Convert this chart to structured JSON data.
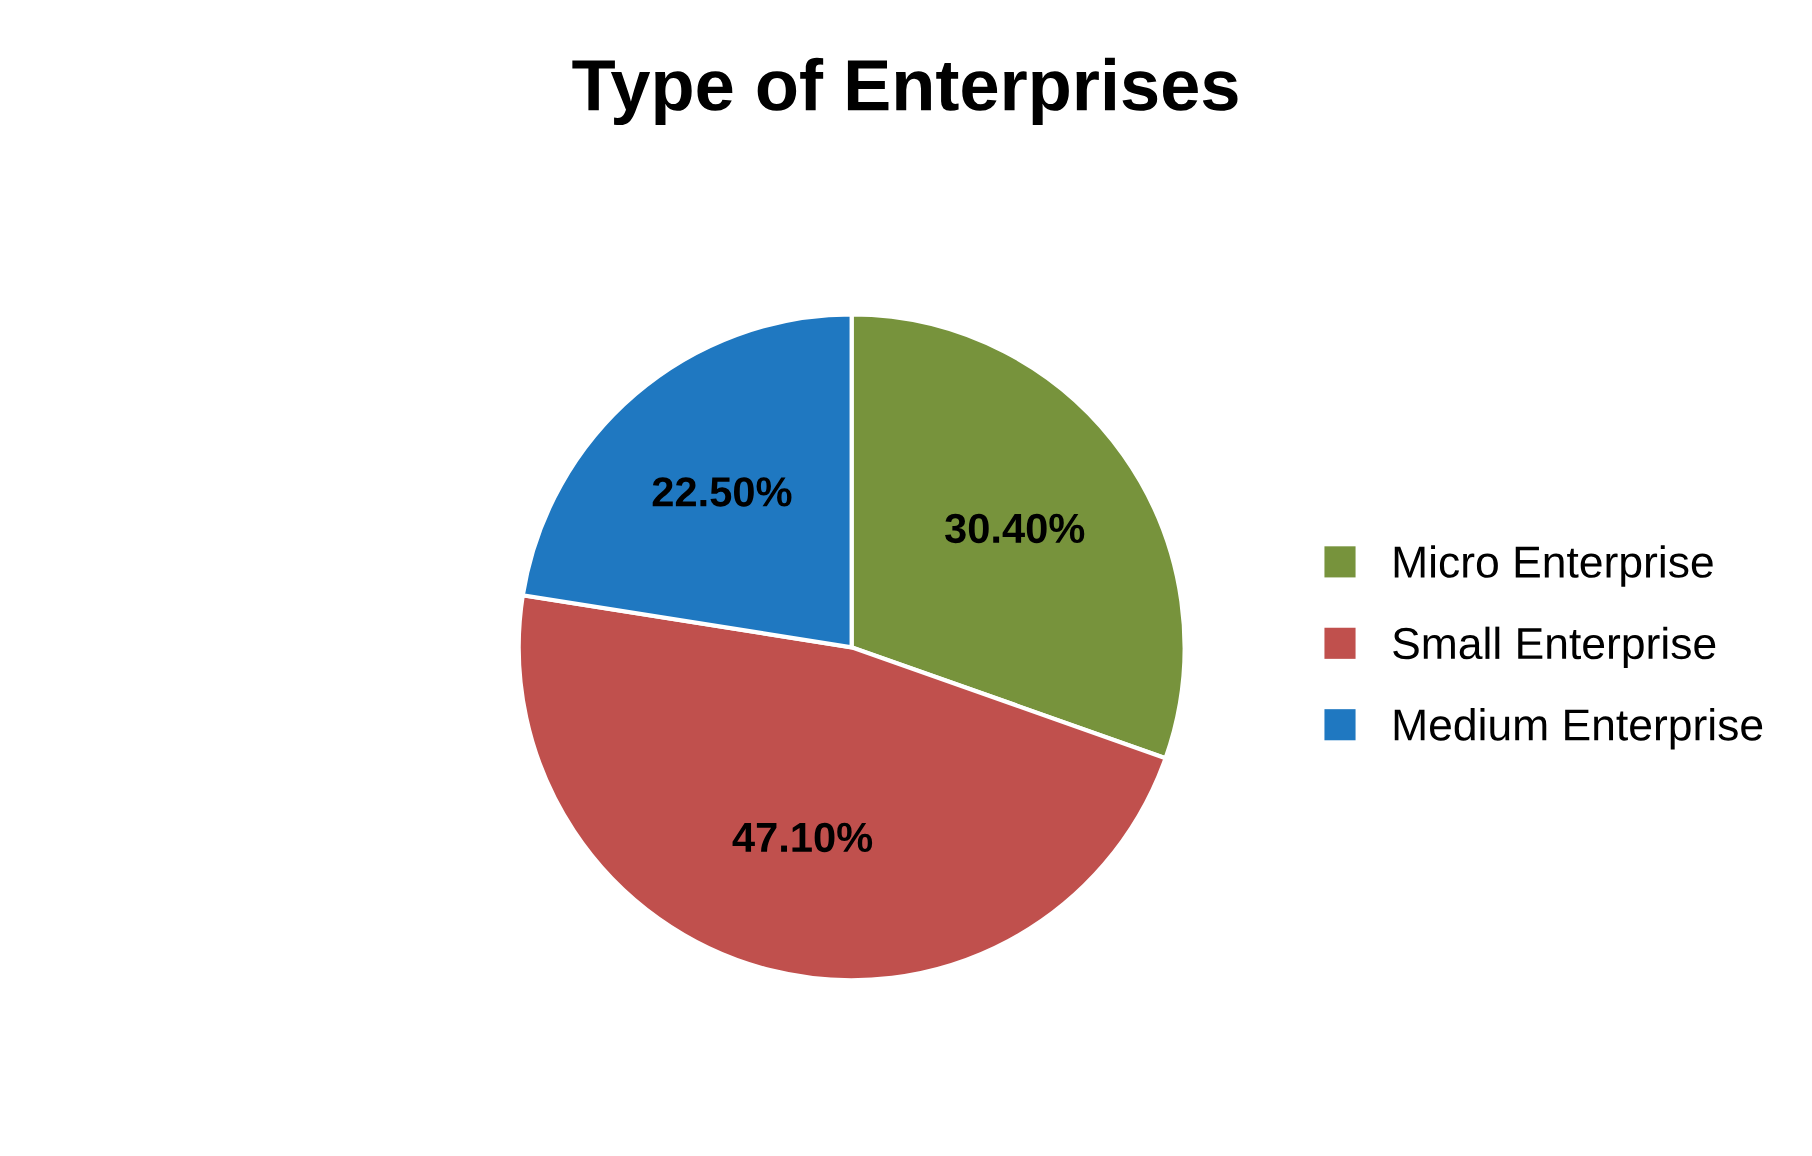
{
  "chart_data": {
    "type": "pie",
    "title": "Type of Enterprises",
    "categories": [
      "Micro Enterprise",
      "Small Enterprise",
      "Medium Enterprise"
    ],
    "values": [
      30.4,
      47.1,
      22.5
    ],
    "value_labels": [
      "30.40%",
      "47.10%",
      "22.50%"
    ],
    "colors": [
      "#77933c",
      "#c0504d",
      "#1f78c1"
    ],
    "legend": "right"
  }
}
